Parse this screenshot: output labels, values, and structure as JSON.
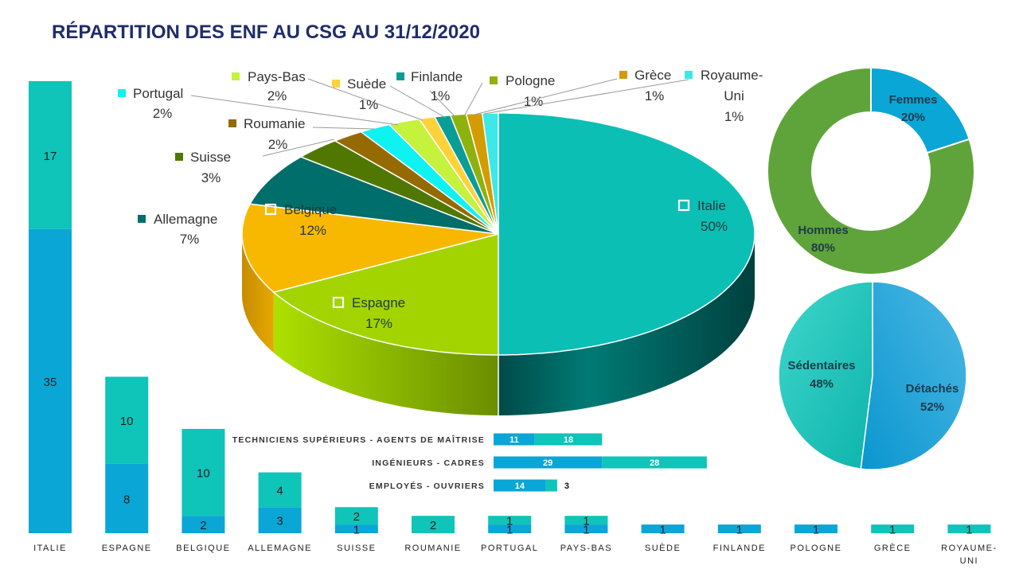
{
  "title": "RÉPARTITION DES ENF AU CSG AU 31/12/2020",
  "colors": {
    "title": "#1f2d6b",
    "bar_bottom": "#0aa6d6",
    "bar_top": "#0fc4b8",
    "hommes": "#5fa43a",
    "femmes": "#0aa6d6",
    "detaches": "#1da8dc",
    "sedentaires": "#22c7bf"
  },
  "chart_data": [
    {
      "id": "countries-stacked",
      "type": "bar",
      "stacked": true,
      "categories": [
        "ITALIE",
        "ESPAGNE",
        "BELGIQUE",
        "ALLEMAGNE",
        "SUISSE",
        "ROUMANIE",
        "PORTUGAL",
        "PAYS-BAS",
        "SUÈDE",
        "FINLANDE",
        "POLOGNE",
        "GRÈCE",
        "ROYAUME-UNI"
      ],
      "series": [
        {
          "color": "#0aa6d6",
          "values": [
            35,
            8,
            2,
            3,
            1,
            0,
            1,
            1,
            1,
            1,
            1,
            0,
            0
          ]
        },
        {
          "color": "#0fc4b8",
          "values": [
            17,
            10,
            10,
            4,
            2,
            2,
            1,
            1,
            0,
            0,
            0,
            1,
            1
          ]
        }
      ],
      "ylim": [
        0,
        53
      ]
    },
    {
      "id": "countries-pie",
      "type": "pie",
      "slices": [
        {
          "label": "Italie",
          "value": 50,
          "pct": "50%",
          "color": "#0bbfb5",
          "marker": true
        },
        {
          "label": "Espagne",
          "value": 17,
          "pct": "17%",
          "color": "#a3d400",
          "marker": true
        },
        {
          "label": "Belgique",
          "value": 12,
          "pct": "12%",
          "color": "#f9b800",
          "marker": true
        },
        {
          "label": "Allemagne",
          "value": 7,
          "pct": "7%",
          "color": "#006e6a"
        },
        {
          "label": "Suisse",
          "value": 3,
          "pct": "3%",
          "color": "#507800"
        },
        {
          "label": "Roumanie",
          "value": 2,
          "pct": "2%",
          "color": "#956a00"
        },
        {
          "label": "Portugal",
          "value": 2,
          "pct": "2%",
          "color": "#0ef2f2"
        },
        {
          "label": "Pays-Bas",
          "value": 2,
          "pct": "2%",
          "color": "#c5f23c"
        },
        {
          "label": "Suède",
          "value": 1,
          "pct": "1%",
          "color": "#ffd23a"
        },
        {
          "label": "Finlande",
          "value": 1,
          "pct": "1%",
          "color": "#0a9d96"
        },
        {
          "label": "Pologne",
          "value": 1,
          "pct": "1%",
          "color": "#8fb10e"
        },
        {
          "label": "Grèce",
          "value": 1,
          "pct": "1%",
          "color": "#d39c00"
        },
        {
          "label": "Royaume-Uni",
          "value": 1,
          "pct": "1%",
          "color": "#3ee8e8"
        }
      ]
    },
    {
      "id": "gender-donut",
      "type": "pie",
      "donut": true,
      "slices": [
        {
          "label": "Femmes",
          "value": 20,
          "pct": "20%",
          "color": "#0aa6d6"
        },
        {
          "label": "Hommes",
          "value": 80,
          "pct": "80%",
          "color": "#5fa43a"
        }
      ]
    },
    {
      "id": "status-pie",
      "type": "pie",
      "slices": [
        {
          "label": "Détachés",
          "value": 52,
          "pct": "52%",
          "color": "#1da8dc"
        },
        {
          "label": "Sédentaires",
          "value": 48,
          "pct": "48%",
          "color": "#22c7bf"
        }
      ]
    },
    {
      "id": "categories-hbar",
      "type": "bar",
      "orientation": "horizontal",
      "stacked": true,
      "categories": [
        "TECHNICIENS SUPÉRIEURS - AGENTS DE MAÎTRISE",
        "INGÉNIEURS - CADRES",
        "EMPLOYÉS - OUVRIERS"
      ],
      "series": [
        {
          "color": "#0aa6d6",
          "values": [
            11,
            29,
            14
          ]
        },
        {
          "color": "#0fc4b8",
          "values": [
            18,
            28,
            3
          ]
        }
      ]
    }
  ]
}
